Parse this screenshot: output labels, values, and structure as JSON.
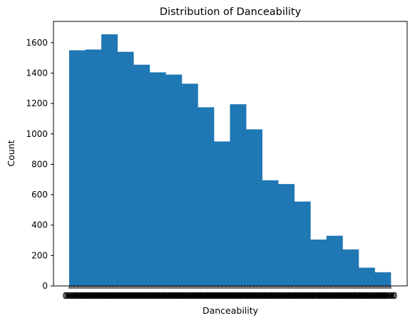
{
  "chart_data": {
    "type": "bar",
    "title": "Distribution of Danceability",
    "xlabel": "Danceability",
    "ylabel": "Count",
    "ylim": [
      0,
      1740
    ],
    "yticks": [
      0,
      200,
      400,
      600,
      800,
      1000,
      1200,
      1400,
      1600
    ],
    "values": [
      1550,
      1555,
      1655,
      1540,
      1455,
      1405,
      1390,
      1330,
      1175,
      950,
      1195,
      1030,
      695,
      670,
      555,
      305,
      330,
      240,
      120,
      90
    ],
    "color": "#1f77b4",
    "grid": false,
    "legend": null,
    "x_tick_labels_note": "overlapping unreadable tick labels along x axis"
  }
}
